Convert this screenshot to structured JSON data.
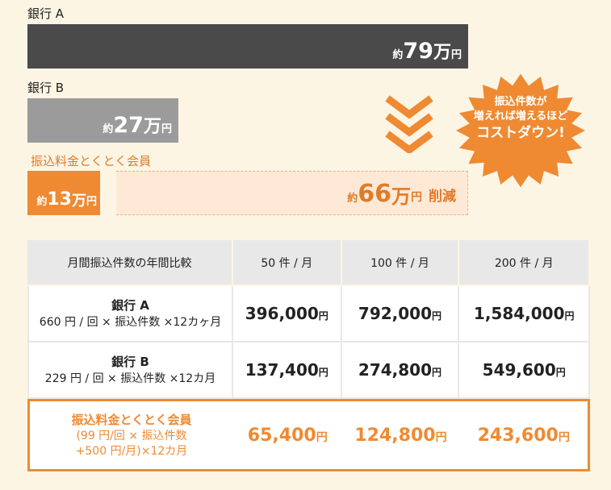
{
  "chart_data": {
    "type": "bar",
    "categories": [
      "銀行 A",
      "銀行 B",
      "振込料金とくとく会員"
    ],
    "values": [
      79,
      27,
      13
    ],
    "unit": "万円",
    "xlim": [
      0,
      79
    ]
  },
  "bars": [
    {
      "label": "銀行 A",
      "prefix": "約",
      "number": "79",
      "man": "万",
      "yen": "円"
    },
    {
      "label": "銀行 B",
      "prefix": "約",
      "number": "27",
      "man": "万",
      "yen": "円"
    },
    {
      "label": "振込料金とくとく会員",
      "prefix": "約",
      "number": "13",
      "man": "万",
      "yen": "円"
    }
  ],
  "saving": {
    "prefix": "約",
    "number": "66",
    "man": "万",
    "yen": "円",
    "suffix": "削減"
  },
  "burst": {
    "line1": "振込件数が",
    "line2": "増えれば増えるほど",
    "line3": "コストダウン!"
  },
  "colors": {
    "bank_a": "#4a4a4a",
    "bank_b": "#9b9b9b",
    "member": "#ef8a32",
    "background": "#fdf5e4"
  },
  "icons": {
    "arrow": "triple-chevron-down-icon",
    "burst": "starburst-badge"
  },
  "table": {
    "headers": [
      "月間振込件数の年間比較",
      "50 件 / 月",
      "100 件 / 月",
      "200 件 / 月"
    ],
    "rows": [
      {
        "name": "銀行 A",
        "sub1": "660 円 / 回 × 振込件数 ×12カヶ月",
        "sub2": "",
        "values": [
          "396,000",
          "792,000",
          "1,584,000"
        ],
        "yen": "円"
      },
      {
        "name": "銀行 B",
        "sub1": "229 円 / 回 × 振込件数 ×12カ月",
        "sub2": "",
        "values": [
          "137,400",
          "274,800",
          "549,600"
        ],
        "yen": "円"
      },
      {
        "name": "振込料金とくとく会員",
        "sub1": "(99 円/回 × 振込件数",
        "sub2": "+500 円/月)×12カ月",
        "values": [
          "65,400",
          "124,800",
          "243,600"
        ],
        "yen": "円"
      }
    ]
  }
}
